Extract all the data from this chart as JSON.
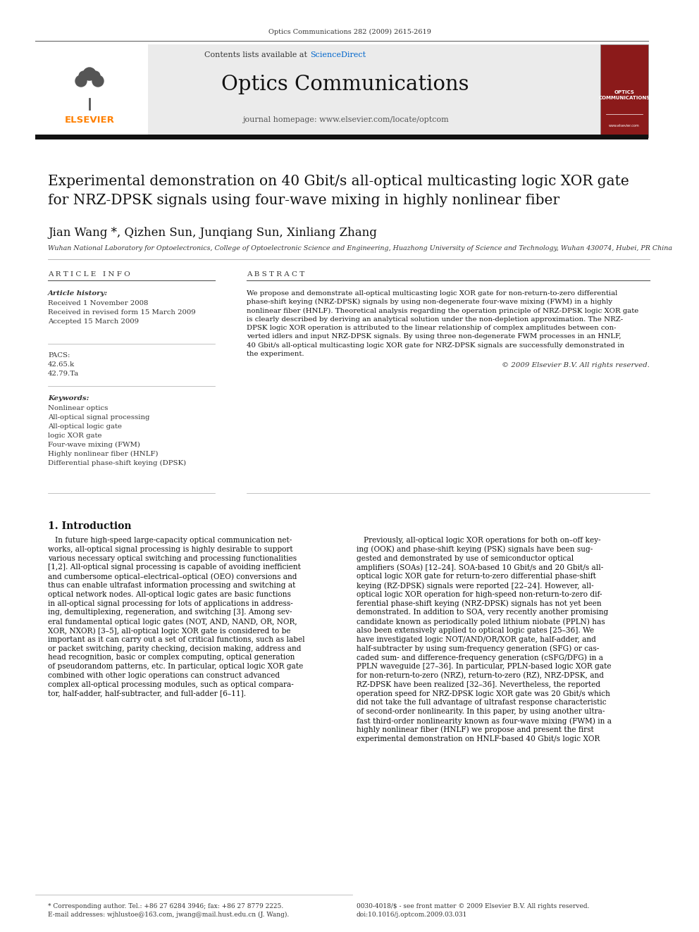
{
  "journal_ref": "Optics Communications 282 (2009) 2615-2619",
  "sciencedirect_color": "#0066CC",
  "journal_name": "Optics Communications",
  "journal_homepage": "journal homepage: www.elsevier.com/locate/optcom",
  "paper_title": "Experimental demonstration on 40 Gbit/s all-optical multicasting logic XOR gate\nfor NRZ-DPSK signals using four-wave mixing in highly nonlinear fiber",
  "authors": "Jian Wang *, Qizhen Sun, Junqiang Sun, Xinliang Zhang",
  "affiliation": "Wuhan National Laboratory for Optoelectronics, College of Optoelectronic Science and Engineering, Huazhong University of Science and Technology, Wuhan 430074, Hubei, PR China",
  "article_info_header": "A R T I C L E   I N F O",
  "abstract_header": "A B S T R A C T",
  "article_history_label": "Article history:",
  "received1": "Received 1 November 2008",
  "received2": "Received in revised form 15 March 2009",
  "accepted": "Accepted 15 March 2009",
  "pacs_label": "PACS:",
  "pacs_values": [
    "42.65.k",
    "42.79.Ta"
  ],
  "keywords_label": "Keywords:",
  "keywords": [
    "Nonlinear optics",
    "All-optical signal processing",
    "All-optical logic gate",
    "logic XOR gate",
    "Four-wave mixing (FWM)",
    "Highly nonlinear fiber (HNLF)",
    "Differential phase-shift keying (DPSK)"
  ],
  "abstract_lines": [
    "We propose and demonstrate all-optical multicasting logic XOR gate for non-return-to-zero differential",
    "phase-shift keying (NRZ-DPSK) signals by using non-degenerate four-wave mixing (FWM) in a highly",
    "nonlinear fiber (HNLF). Theoretical analysis regarding the operation principle of NRZ-DPSK logic XOR gate",
    "is clearly described by deriving an analytical solution under the non-depletion approximation. The NRZ-",
    "DPSK logic XOR operation is attributed to the linear relationship of complex amplitudes between con-",
    "verted idlers and input NRZ-DPSK signals. By using three non-degenerate FWM processes in an HNLF,",
    "40 Gbit/s all-optical multicasting logic XOR gate for NRZ-DPSK signals are successfully demonstrated in",
    "the experiment."
  ],
  "copyright": "© 2009 Elsevier B.V. All rights reserved.",
  "intro_header": "1. Introduction",
  "intro_col1_lines": [
    "   In future high-speed large-capacity optical communication net-",
    "works, all-optical signal processing is highly desirable to support",
    "various necessary optical switching and processing functionalities",
    "[1,2]. All-optical signal processing is capable of avoiding inefficient",
    "and cumbersome optical–electrical–optical (OEO) conversions and",
    "thus can enable ultrafast information processing and switching at",
    "optical network nodes. All-optical logic gates are basic functions",
    "in all-optical signal processing for lots of applications in address-",
    "ing, demultiplexing, regeneration, and switching [3]. Among sev-",
    "eral fundamental optical logic gates (NOT, AND, NAND, OR, NOR,",
    "XOR, NXOR) [3–5], all-optical logic XOR gate is considered to be",
    "important as it can carry out a set of critical functions, such as label",
    "or packet switching, parity checking, decision making, address and",
    "head recognition, basic or complex computing, optical generation",
    "of pseudorandom patterns, etc. In particular, optical logic XOR gate",
    "combined with other logic operations can construct advanced",
    "complex all-optical processing modules, such as optical compara-",
    "tor, half-adder, half-subtracter, and full-adder [6–11]."
  ],
  "intro_col2_lines": [
    "   Previously, all-optical logic XOR operations for both on–off key-",
    "ing (OOK) and phase-shift keying (PSK) signals have been sug-",
    "gested and demonstrated by use of semiconductor optical",
    "amplifiers (SOAs) [12–24]. SOA-based 10 Gbit/s and 20 Gbit/s all-",
    "optical logic XOR gate for return-to-zero differential phase-shift",
    "keying (RZ-DPSK) signals were reported [22–24]. However, all-",
    "optical logic XOR operation for high-speed non-return-to-zero dif-",
    "ferential phase-shift keying (NRZ-DPSK) signals has not yet been",
    "demonstrated. In addition to SOA, very recently another promising",
    "candidate known as periodically poled lithium niobate (PPLN) has",
    "also been extensively applied to optical logic gates [25–36]. We",
    "have investigated logic NOT/AND/OR/XOR gate, half-adder, and",
    "half-subtracter by using sum-frequency generation (SFG) or cas-",
    "caded sum- and difference-frequency generation (cSFG/DFG) in a",
    "PPLN waveguide [27–36]. In particular, PPLN-based logic XOR gate",
    "for non-return-to-zero (NRZ), return-to-zero (RZ), NRZ-DPSK, and",
    "RZ-DPSK have been realized [32–36]. Nevertheless, the reported",
    "operation speed for NRZ-DPSK logic XOR gate was 20 Gbit/s which",
    "did not take the full advantage of ultrafast response characteristic",
    "of second-order nonlinearity. In this paper, by using another ultra-",
    "fast third-order nonlinearity known as four-wave mixing (FWM) in a",
    "highly nonlinear fiber (HNLF) we propose and present the first",
    "experimental demonstration on HNLF-based 40 Gbit/s logic XOR"
  ],
  "footer_left_lines": [
    "* Corresponding author. Tel.: +86 27 6284 3946; fax: +86 27 8779 2225.",
    "E-mail addresses: wjhlustoe@163.com, jwang@mail.hust.edu.cn (J. Wang)."
  ],
  "footer_right_lines": [
    "0030-4018/$ - see front matter © 2009 Elsevier B.V. All rights reserved.",
    "doi:10.1016/j.optcom.2009.03.031"
  ],
  "bg_color": "#ffffff",
  "header_bg": "#ebebeb",
  "dark_bar_color": "#111111",
  "elsevier_orange": "#FF8000",
  "journal_cover_red": "#8B1A1A"
}
